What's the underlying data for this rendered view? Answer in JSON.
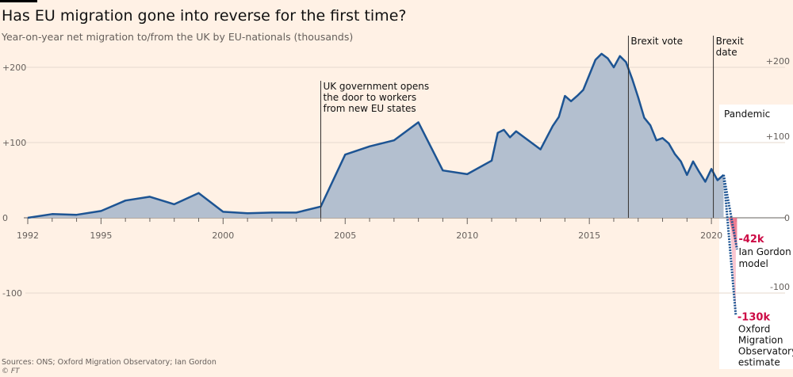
{
  "title": "Has EU migration gone into reverse for the first time?",
  "subtitle": "Year-on-year net migration to/from the UK by EU-nationals (thousands)",
  "source": "Sources: ONS; Oxford Migration Observatory; Ian Gordon",
  "credit": "© FT",
  "colors": {
    "background": "#fff1e5",
    "line": "#1d5493",
    "area": "#b3bfcf",
    "highlight_red": "#cc0a44",
    "projection_pink": "#f7b8c4"
  },
  "chart_data": {
    "type": "area",
    "title": "Has EU migration gone into reverse for the first time?",
    "subtitle": "Year-on-year net migration to/from the UK by EU-nationals (thousands)",
    "xlim": [
      1992,
      2021
    ],
    "ylim": [
      -130,
      230
    ],
    "x_ticks": [
      1992,
      1995,
      2000,
      2005,
      2010,
      2015,
      2020
    ],
    "y_ticks": [
      {
        "value": 200,
        "label": "+200"
      },
      {
        "value": 100,
        "label": "+100"
      },
      {
        "value": 0,
        "label": "0"
      },
      {
        "value": -100,
        "label": "-100"
      }
    ],
    "grid": true,
    "series": [
      {
        "x": [
          1992,
          1993,
          1994,
          1995,
          1996,
          1997,
          1998,
          1999,
          2000,
          2001,
          2002,
          2003,
          2004,
          2005,
          2006,
          2007,
          2008,
          2009,
          2010,
          2011,
          2011.25,
          2011.5,
          2011.75,
          2012,
          2013,
          2013.5,
          2013.75,
          2014,
          2014.25,
          2014.5,
          2014.75,
          2015,
          2015.25,
          2015.5,
          2015.75,
          2016,
          2016.25,
          2016.5,
          2016.75,
          2017,
          2017.25,
          2017.5,
          2017.75,
          2018,
          2018.25,
          2018.5,
          2018.75,
          2019,
          2019.25,
          2019.5,
          2019.75,
          2020,
          2020.25,
          2020.5
        ],
        "y": [
          0,
          5,
          4,
          9,
          23,
          28,
          18,
          33,
          8,
          6,
          7,
          7,
          15,
          84,
          95,
          103,
          127,
          63,
          58,
          76,
          113,
          117,
          107,
          115,
          91,
          122,
          134,
          162,
          155,
          162,
          170,
          190,
          210,
          218,
          212,
          200,
          215,
          207,
          185,
          160,
          133,
          123,
          103,
          106,
          99,
          85,
          75,
          57,
          75,
          61,
          48,
          65,
          50,
          57
        ]
      }
    ],
    "projections": [
      {
        "label": "-42k",
        "name": "Ian Gordon model",
        "x": [
          2020.5,
          2021.05
        ],
        "y": [
          57,
          -42
        ]
      },
      {
        "label": "-130k",
        "name": "Oxford Migration Observatory estimate",
        "x": [
          2020.5,
          2021.0
        ],
        "y": [
          57,
          -130
        ]
      }
    ],
    "annotations": [
      {
        "x": 2004,
        "text": [
          "UK government opens",
          "the door to workers",
          "from new EU states"
        ]
      },
      {
        "x": 2016.6,
        "text": [
          "Brexit vote"
        ]
      },
      {
        "x": 2020.08,
        "text": [
          "Brexit",
          "date"
        ]
      }
    ],
    "shaded_region": {
      "label": "Pandemic",
      "from": 2020.2
    }
  }
}
